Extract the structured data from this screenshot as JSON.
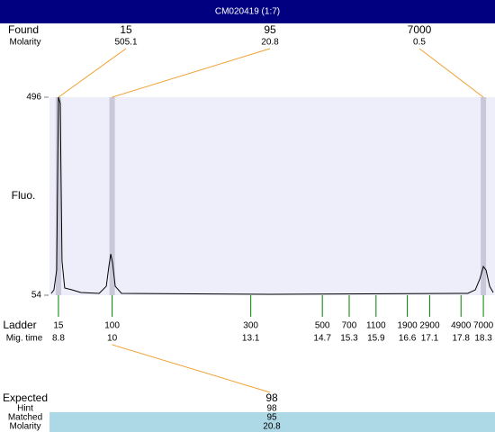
{
  "header": {
    "title": "CM020419 (1:7)"
  },
  "chart_data": {
    "type": "line",
    "ylabel": "Fluo.",
    "ylim": [
      54,
      496
    ],
    "yticks": [
      54,
      496
    ],
    "xlim": [
      8.6,
      18.56
    ],
    "x": [
      8.64,
      8.7,
      8.76,
      8.8,
      8.84,
      8.88,
      8.94,
      9.1,
      9.3,
      9.71,
      9.87,
      9.93,
      9.97,
      10.01,
      10.07,
      10.21,
      13.53,
      17.95,
      18.12,
      18.22,
      18.3,
      18.36,
      18.44,
      18.52
    ],
    "series": [
      {
        "color": "#000000",
        "values": [
          58,
          66,
          110,
          496,
          482,
          130,
          70,
          66,
          60,
          58,
          74,
          120,
          146,
          126,
          74,
          58,
          56,
          58,
          66,
          90,
          118,
          110,
          74,
          60
        ]
      }
    ],
    "found": {
      "label": "Found",
      "molarity_label": "Molarity",
      "peaks": [
        {
          "size": 15,
          "molarity": 505.1,
          "time": 8.8
        },
        {
          "size": 95,
          "molarity": 20.8,
          "time": 10
        },
        {
          "size": 7000,
          "molarity": 0.5,
          "time": 18.3
        }
      ]
    },
    "ladder": {
      "label": "Ladder",
      "time_label": "Mig. time",
      "sizes": [
        15,
        100,
        300,
        500,
        700,
        1100,
        1900,
        2900,
        4900,
        7000
      ],
      "times": [
        8.8,
        10,
        13.1,
        14.7,
        15.3,
        15.9,
        16.6,
        17.1,
        17.8,
        18.3
      ]
    },
    "expected": {
      "labels": [
        "Expected",
        "Hint",
        "Matched",
        "Molarity"
      ],
      "values": [
        98,
        98,
        95,
        20.8
      ]
    }
  }
}
